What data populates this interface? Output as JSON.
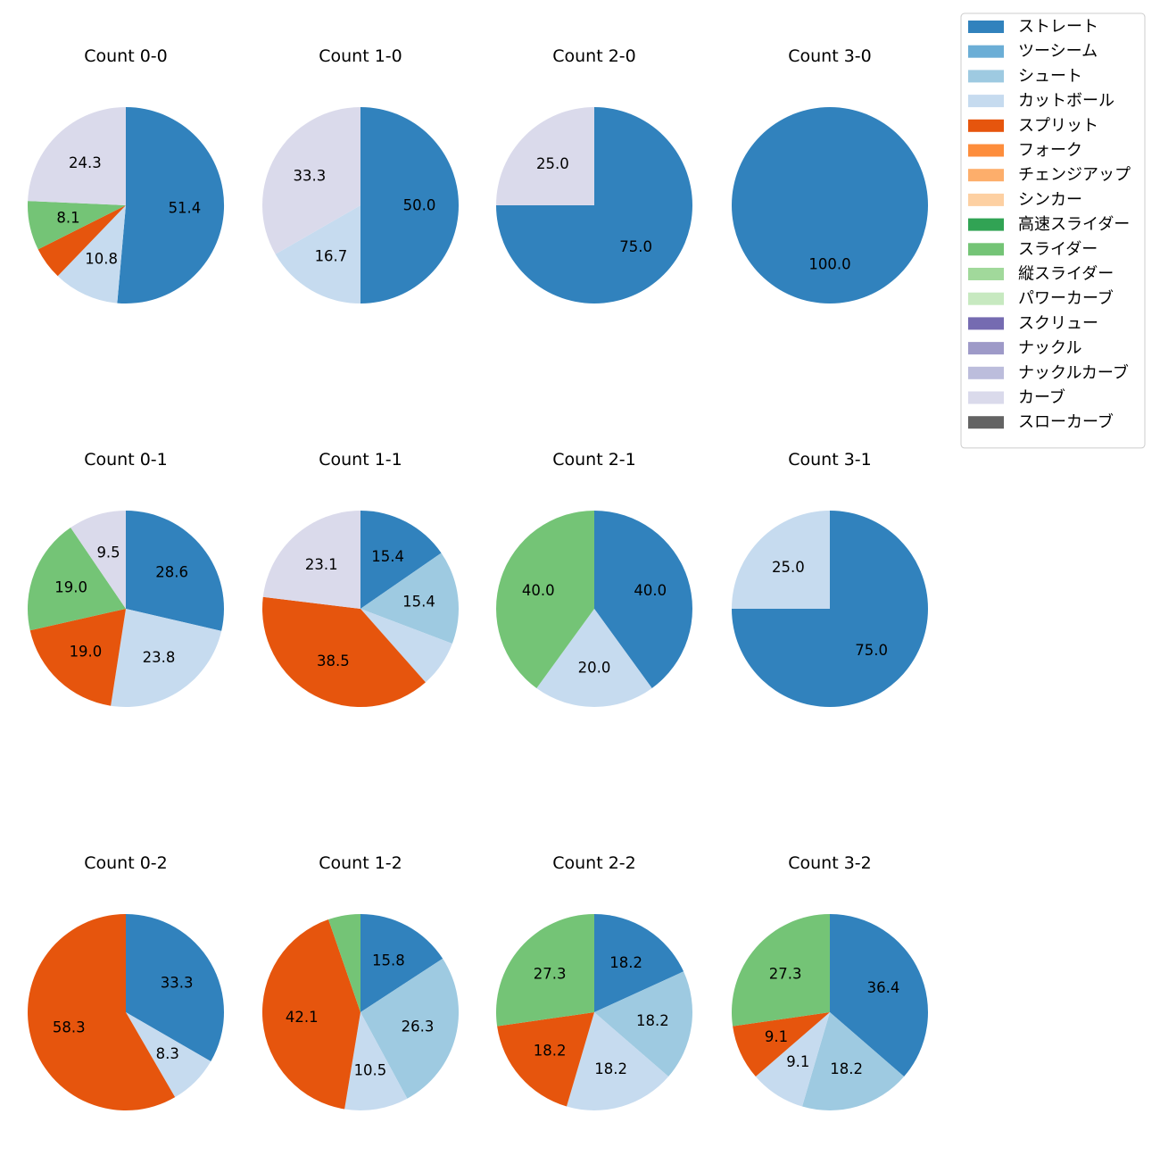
{
  "categories": [
    {
      "name": "ストレート",
      "color": "#3182bd"
    },
    {
      "name": "ツーシーム",
      "color": "#6baed6"
    },
    {
      "name": "シュート",
      "color": "#9ecae1"
    },
    {
      "name": "カットボール",
      "color": "#c6dbef"
    },
    {
      "name": "スプリット",
      "color": "#e6550d"
    },
    {
      "name": "フォーク",
      "color": "#fd8d3c"
    },
    {
      "name": "チェンジアップ",
      "color": "#fdae6b"
    },
    {
      "name": "シンカー",
      "color": "#fdd0a2"
    },
    {
      "name": "高速スライダー",
      "color": "#31a354"
    },
    {
      "name": "スライダー",
      "color": "#74c476"
    },
    {
      "name": "縦スライダー",
      "color": "#a1d99b"
    },
    {
      "name": "パワーカーブ",
      "color": "#c7e9c0"
    },
    {
      "name": "スクリュー",
      "color": "#756bb1"
    },
    {
      "name": "ナックル",
      "color": "#9e9ac8"
    },
    {
      "name": "ナックルカーブ",
      "color": "#bcbddc"
    },
    {
      "name": "カーブ",
      "color": "#dadaeb"
    },
    {
      "name": "スローカーブ",
      "color": "#636363"
    }
  ],
  "chart_data": [
    {
      "type": "pie",
      "title": "Count 0-0",
      "slices": [
        {
          "category": "ストレート",
          "value": 51.4,
          "label": "51.4"
        },
        {
          "category": "カットボール",
          "value": 10.8,
          "label": "10.8"
        },
        {
          "category": "スプリット",
          "value": 5.4,
          "label": ""
        },
        {
          "category": "スライダー",
          "value": 8.1,
          "label": "8.1"
        },
        {
          "category": "カーブ",
          "value": 24.3,
          "label": "24.3"
        }
      ]
    },
    {
      "type": "pie",
      "title": "Count 1-0",
      "slices": [
        {
          "category": "ストレート",
          "value": 50.0,
          "label": "50.0"
        },
        {
          "category": "カットボール",
          "value": 16.7,
          "label": "16.7"
        },
        {
          "category": "カーブ",
          "value": 33.3,
          "label": "33.3"
        }
      ]
    },
    {
      "type": "pie",
      "title": "Count 2-0",
      "slices": [
        {
          "category": "ストレート",
          "value": 75.0,
          "label": "75.0"
        },
        {
          "category": "カーブ",
          "value": 25.0,
          "label": "25.0"
        }
      ]
    },
    {
      "type": "pie",
      "title": "Count 3-0",
      "slices": [
        {
          "category": "ストレート",
          "value": 100.0,
          "label": "100.0"
        }
      ]
    },
    {
      "type": "pie",
      "title": "Count 0-1",
      "slices": [
        {
          "category": "ストレート",
          "value": 28.6,
          "label": "28.6"
        },
        {
          "category": "カットボール",
          "value": 23.8,
          "label": "23.8"
        },
        {
          "category": "スプリット",
          "value": 19.0,
          "label": "19.0"
        },
        {
          "category": "スライダー",
          "value": 19.0,
          "label": "19.0"
        },
        {
          "category": "カーブ",
          "value": 9.5,
          "label": "9.5"
        }
      ]
    },
    {
      "type": "pie",
      "title": "Count 1-1",
      "slices": [
        {
          "category": "ストレート",
          "value": 15.4,
          "label": "15.4"
        },
        {
          "category": "シュート",
          "value": 15.4,
          "label": "15.4"
        },
        {
          "category": "カットボール",
          "value": 7.7,
          "label": ""
        },
        {
          "category": "スプリット",
          "value": 38.5,
          "label": "38.5"
        },
        {
          "category": "カーブ",
          "value": 23.1,
          "label": "23.1"
        }
      ]
    },
    {
      "type": "pie",
      "title": "Count 2-1",
      "slices": [
        {
          "category": "ストレート",
          "value": 40.0,
          "label": "40.0"
        },
        {
          "category": "カットボール",
          "value": 20.0,
          "label": "20.0"
        },
        {
          "category": "スライダー",
          "value": 40.0,
          "label": "40.0"
        }
      ]
    },
    {
      "type": "pie",
      "title": "Count 3-1",
      "slices": [
        {
          "category": "ストレート",
          "value": 75.0,
          "label": "75.0"
        },
        {
          "category": "カットボール",
          "value": 25.0,
          "label": "25.0"
        }
      ]
    },
    {
      "type": "pie",
      "title": "Count 0-2",
      "slices": [
        {
          "category": "ストレート",
          "value": 33.3,
          "label": "33.3"
        },
        {
          "category": "カットボール",
          "value": 8.3,
          "label": "8.3"
        },
        {
          "category": "スプリット",
          "value": 58.3,
          "label": "58.3"
        }
      ]
    },
    {
      "type": "pie",
      "title": "Count 1-2",
      "slices": [
        {
          "category": "ストレート",
          "value": 15.8,
          "label": "15.8"
        },
        {
          "category": "シュート",
          "value": 26.3,
          "label": "26.3"
        },
        {
          "category": "カットボール",
          "value": 10.5,
          "label": "10.5"
        },
        {
          "category": "スプリット",
          "value": 42.1,
          "label": "42.1"
        },
        {
          "category": "スライダー",
          "value": 5.3,
          "label": ""
        }
      ]
    },
    {
      "type": "pie",
      "title": "Count 2-2",
      "slices": [
        {
          "category": "ストレート",
          "value": 18.2,
          "label": "18.2"
        },
        {
          "category": "シュート",
          "value": 18.2,
          "label": "18.2"
        },
        {
          "category": "カットボール",
          "value": 18.2,
          "label": "18.2"
        },
        {
          "category": "スプリット",
          "value": 18.2,
          "label": "18.2"
        },
        {
          "category": "スライダー",
          "value": 27.3,
          "label": "27.3"
        }
      ]
    },
    {
      "type": "pie",
      "title": "Count 3-2",
      "slices": [
        {
          "category": "ストレート",
          "value": 36.4,
          "label": "36.4"
        },
        {
          "category": "シュート",
          "value": 18.2,
          "label": "18.2"
        },
        {
          "category": "カットボール",
          "value": 9.1,
          "label": "9.1"
        },
        {
          "category": "スプリット",
          "value": 9.1,
          "label": "9.1"
        },
        {
          "category": "スライダー",
          "value": 27.3,
          "label": "27.3"
        }
      ]
    }
  ],
  "legend": {
    "placement": "top-right"
  }
}
